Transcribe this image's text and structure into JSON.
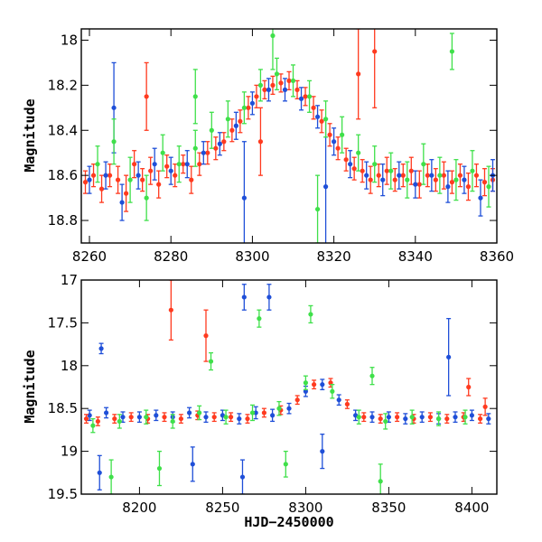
{
  "colors": {
    "blue": "#1f4fd8",
    "green": "#3fe04a",
    "red": "#ff3a1f"
  },
  "chart_data": [
    {
      "type": "scatter",
      "title": "",
      "xlabel": "",
      "ylabel": "Magnitude",
      "xlim": [
        8258,
        8360
      ],
      "ylim": [
        18.9,
        17.95
      ],
      "y_inverted": true,
      "grid": false,
      "x_ticks": [
        "8260",
        "8280",
        "8300",
        "8320",
        "8340",
        "8360"
      ],
      "y_ticks": [
        "18",
        "18.2",
        "18.4",
        "18.6",
        "18.8"
      ],
      "series": [
        {
          "color": "#ff3a1f",
          "points": [
            [
              8259,
              18.63,
              0.05
            ],
            [
              8261,
              18.6,
              0.05
            ],
            [
              8263,
              18.66,
              0.06
            ],
            [
              8265,
              18.6,
              0.05
            ],
            [
              8267,
              18.62,
              0.06
            ],
            [
              8269,
              18.68,
              0.08
            ],
            [
              8271,
              18.55,
              0.06
            ],
            [
              8273,
              18.62,
              0.05
            ],
            [
              8275,
              18.58,
              0.06
            ],
            [
              8277,
              18.64,
              0.06
            ],
            [
              8279,
              18.56,
              0.05
            ],
            [
              8281,
              18.6,
              0.05
            ],
            [
              8283,
              18.55,
              0.04
            ],
            [
              8285,
              18.62,
              0.06
            ],
            [
              8287,
              18.55,
              0.05
            ],
            [
              8289,
              18.5,
              0.05
            ],
            [
              8291,
              18.48,
              0.05
            ],
            [
              8293,
              18.45,
              0.04
            ],
            [
              8295,
              18.4,
              0.05
            ],
            [
              8297,
              18.36,
              0.05
            ],
            [
              8299,
              18.3,
              0.05
            ],
            [
              8301,
              18.25,
              0.05
            ],
            [
              8303,
              18.22,
              0.04
            ],
            [
              8305,
              18.2,
              0.04
            ],
            [
              8307,
              18.19,
              0.04
            ],
            [
              8309,
              18.18,
              0.04
            ],
            [
              8311,
              18.22,
              0.04
            ],
            [
              8313,
              18.25,
              0.04
            ],
            [
              8315,
              18.3,
              0.05
            ],
            [
              8317,
              18.36,
              0.05
            ],
            [
              8319,
              18.42,
              0.05
            ],
            [
              8321,
              18.48,
              0.05
            ],
            [
              8323,
              18.53,
              0.05
            ],
            [
              8325,
              18.57,
              0.05
            ],
            [
              8327,
              18.58,
              0.05
            ],
            [
              8329,
              18.62,
              0.06
            ],
            [
              8331,
              18.6,
              0.05
            ],
            [
              8333,
              18.58,
              0.06
            ],
            [
              8335,
              18.62,
              0.05
            ],
            [
              8337,
              18.6,
              0.05
            ],
            [
              8339,
              18.58,
              0.06
            ],
            [
              8341,
              18.64,
              0.06
            ],
            [
              8343,
              18.6,
              0.05
            ],
            [
              8345,
              18.62,
              0.05
            ],
            [
              8347,
              18.6,
              0.06
            ],
            [
              8349,
              18.63,
              0.05
            ],
            [
              8351,
              18.6,
              0.05
            ],
            [
              8353,
              18.65,
              0.06
            ],
            [
              8355,
              18.6,
              0.05
            ],
            [
              8357,
              18.63,
              0.06
            ],
            [
              8359,
              18.62,
              0.05
            ],
            [
              8274,
              18.25,
              0.15
            ],
            [
              8302,
              18.45,
              0.15
            ],
            [
              8326,
              18.15,
              0.2
            ],
            [
              8330,
              18.05,
              0.25
            ]
          ]
        },
        {
          "color": "#1f4fd8",
          "points": [
            [
              8260,
              18.62,
              0.06
            ],
            [
              8264,
              18.6,
              0.06
            ],
            [
              8268,
              18.72,
              0.08
            ],
            [
              8272,
              18.6,
              0.06
            ],
            [
              8276,
              18.55,
              0.07
            ],
            [
              8280,
              18.58,
              0.06
            ],
            [
              8284,
              18.55,
              0.06
            ],
            [
              8288,
              18.5,
              0.05
            ],
            [
              8292,
              18.46,
              0.05
            ],
            [
              8296,
              18.38,
              0.06
            ],
            [
              8300,
              18.28,
              0.05
            ],
            [
              8304,
              18.22,
              0.05
            ],
            [
              8308,
              18.22,
              0.05
            ],
            [
              8312,
              18.26,
              0.05
            ],
            [
              8316,
              18.34,
              0.05
            ],
            [
              8320,
              18.45,
              0.06
            ],
            [
              8324,
              18.55,
              0.06
            ],
            [
              8328,
              18.6,
              0.06
            ],
            [
              8332,
              18.62,
              0.07
            ],
            [
              8336,
              18.6,
              0.06
            ],
            [
              8340,
              18.64,
              0.06
            ],
            [
              8344,
              18.6,
              0.07
            ],
            [
              8348,
              18.65,
              0.07
            ],
            [
              8352,
              18.62,
              0.06
            ],
            [
              8356,
              18.7,
              0.08
            ],
            [
              8359,
              18.6,
              0.07
            ],
            [
              8298,
              18.7,
              0.25
            ],
            [
              8318,
              18.65,
              0.3
            ],
            [
              8266,
              18.3,
              0.2
            ]
          ]
        },
        {
          "color": "#3fe04a",
          "points": [
            [
              8262,
              18.55,
              0.08
            ],
            [
              8266,
              18.45,
              0.1
            ],
            [
              8270,
              18.62,
              0.1
            ],
            [
              8274,
              18.7,
              0.1
            ],
            [
              8278,
              18.5,
              0.08
            ],
            [
              8282,
              18.55,
              0.08
            ],
            [
              8286,
              18.48,
              0.08
            ],
            [
              8290,
              18.4,
              0.08
            ],
            [
              8294,
              18.35,
              0.08
            ],
            [
              8298,
              18.3,
              0.07
            ],
            [
              8302,
              18.2,
              0.07
            ],
            [
              8306,
              18.15,
              0.07
            ],
            [
              8310,
              18.18,
              0.07
            ],
            [
              8314,
              18.25,
              0.07
            ],
            [
              8318,
              18.35,
              0.08
            ],
            [
              8322,
              18.42,
              0.08
            ],
            [
              8326,
              18.5,
              0.08
            ],
            [
              8330,
              18.55,
              0.08
            ],
            [
              8334,
              18.58,
              0.08
            ],
            [
              8338,
              18.62,
              0.08
            ],
            [
              8342,
              18.55,
              0.09
            ],
            [
              8346,
              18.6,
              0.08
            ],
            [
              8350,
              18.62,
              0.09
            ],
            [
              8354,
              18.58,
              0.09
            ],
            [
              8358,
              18.65,
              0.09
            ],
            [
              8305,
              17.98,
              0.15
            ],
            [
              8349,
              18.05,
              0.08
            ],
            [
              8316,
              18.75,
              0.15
            ],
            [
              8286,
              18.25,
              0.12
            ]
          ]
        }
      ]
    },
    {
      "type": "scatter",
      "title": "",
      "xlabel": "HJD−2450000",
      "ylabel": "Magnitude",
      "xlim": [
        8165,
        8415
      ],
      "ylim": [
        19.5,
        17.0
      ],
      "y_inverted": true,
      "grid": false,
      "x_ticks": [
        "8200",
        "8250",
        "8300",
        "8350",
        "8400"
      ],
      "y_ticks": [
        "17",
        "17.5",
        "18",
        "18.5",
        "19",
        "19.5"
      ],
      "series": [
        {
          "color": "#1f4fd8",
          "points": [
            [
              8170,
              18.58,
              0.06
            ],
            [
              8180,
              18.55,
              0.06
            ],
            [
              8190,
              18.6,
              0.06
            ],
            [
              8200,
              18.6,
              0.06
            ],
            [
              8210,
              18.58,
              0.06
            ],
            [
              8220,
              18.6,
              0.06
            ],
            [
              8230,
              18.55,
              0.06
            ],
            [
              8240,
              18.6,
              0.06
            ],
            [
              8250,
              18.58,
              0.06
            ],
            [
              8260,
              18.62,
              0.06
            ],
            [
              8270,
              18.55,
              0.07
            ],
            [
              8280,
              18.58,
              0.07
            ],
            [
              8290,
              18.5,
              0.06
            ],
            [
              8300,
              18.3,
              0.06
            ],
            [
              8310,
              18.22,
              0.06
            ],
            [
              8320,
              18.4,
              0.06
            ],
            [
              8330,
              18.58,
              0.06
            ],
            [
              8340,
              18.6,
              0.06
            ],
            [
              8350,
              18.6,
              0.06
            ],
            [
              8360,
              18.62,
              0.06
            ],
            [
              8370,
              18.6,
              0.06
            ],
            [
              8380,
              18.62,
              0.06
            ],
            [
              8390,
              18.6,
              0.06
            ],
            [
              8400,
              18.58,
              0.06
            ],
            [
              8410,
              18.62,
              0.06
            ],
            [
              8177,
              17.8,
              0.06
            ],
            [
              8263,
              17.2,
              0.15
            ],
            [
              8278,
              17.2,
              0.15
            ],
            [
              8386,
              17.9,
              0.45
            ],
            [
              8176,
              19.25,
              0.2
            ],
            [
              8232,
              19.15,
              0.2
            ],
            [
              8262,
              19.3,
              0.2
            ],
            [
              8310,
              19.0,
              0.2
            ]
          ]
        },
        {
          "color": "#ff3a1f",
          "points": [
            [
              8168,
              18.62,
              0.05
            ],
            [
              8175,
              18.65,
              0.05
            ],
            [
              8185,
              18.62,
              0.05
            ],
            [
              8195,
              18.6,
              0.05
            ],
            [
              8205,
              18.62,
              0.05
            ],
            [
              8215,
              18.6,
              0.05
            ],
            [
              8225,
              18.62,
              0.05
            ],
            [
              8235,
              18.58,
              0.05
            ],
            [
              8245,
              18.6,
              0.05
            ],
            [
              8255,
              18.6,
              0.05
            ],
            [
              8265,
              18.62,
              0.05
            ],
            [
              8275,
              18.55,
              0.05
            ],
            [
              8285,
              18.52,
              0.05
            ],
            [
              8295,
              18.4,
              0.05
            ],
            [
              8305,
              18.22,
              0.05
            ],
            [
              8315,
              18.2,
              0.05
            ],
            [
              8325,
              18.45,
              0.05
            ],
            [
              8335,
              18.6,
              0.05
            ],
            [
              8345,
              18.62,
              0.05
            ],
            [
              8355,
              18.6,
              0.05
            ],
            [
              8365,
              18.62,
              0.05
            ],
            [
              8375,
              18.6,
              0.05
            ],
            [
              8385,
              18.62,
              0.05
            ],
            [
              8395,
              18.6,
              0.05
            ],
            [
              8405,
              18.62,
              0.05
            ],
            [
              8219,
              17.35,
              0.35
            ],
            [
              8240,
              17.65,
              0.3
            ],
            [
              8398,
              18.25,
              0.1
            ],
            [
              8408,
              18.48,
              0.1
            ]
          ]
        },
        {
          "color": "#3fe04a",
          "points": [
            [
              8172,
              18.7,
              0.08
            ],
            [
              8188,
              18.65,
              0.08
            ],
            [
              8204,
              18.6,
              0.08
            ],
            [
              8220,
              18.65,
              0.08
            ],
            [
              8236,
              18.55,
              0.08
            ],
            [
              8252,
              18.6,
              0.08
            ],
            [
              8268,
              18.55,
              0.09
            ],
            [
              8284,
              18.5,
              0.08
            ],
            [
              8300,
              18.2,
              0.08
            ],
            [
              8316,
              18.3,
              0.08
            ],
            [
              8332,
              18.6,
              0.08
            ],
            [
              8348,
              18.65,
              0.09
            ],
            [
              8364,
              18.6,
              0.08
            ],
            [
              8380,
              18.62,
              0.08
            ],
            [
              8396,
              18.6,
              0.08
            ],
            [
              8272,
              17.45,
              0.1
            ],
            [
              8303,
              17.4,
              0.1
            ],
            [
              8340,
              18.12,
              0.1
            ],
            [
              8243,
              17.95,
              0.1
            ],
            [
              8183,
              19.3,
              0.2
            ],
            [
              8212,
              19.2,
              0.2
            ],
            [
              8288,
              19.15,
              0.15
            ],
            [
              8345,
              19.35,
              0.2
            ]
          ]
        }
      ]
    }
  ]
}
